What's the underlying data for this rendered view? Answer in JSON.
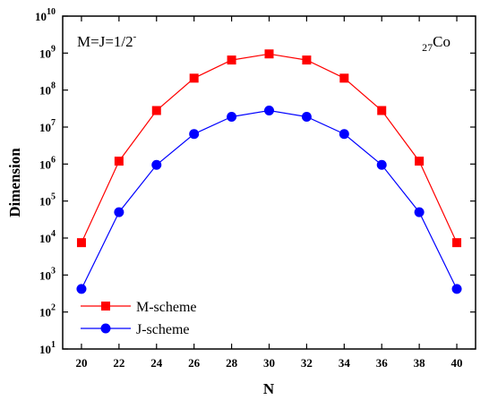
{
  "chart_data": {
    "type": "line",
    "title": "",
    "xlabel": "N",
    "ylabel": "Dimension",
    "x_ticks": [
      20,
      22,
      24,
      26,
      28,
      30,
      32,
      34,
      36,
      38,
      40
    ],
    "xlim": [
      19,
      41
    ],
    "y_scale": "log",
    "y_tick_exponents": [
      1,
      2,
      3,
      4,
      5,
      6,
      7,
      8,
      9,
      10
    ],
    "ylim": [
      10,
      10000000000
    ],
    "grid": false,
    "legend_position": "bottom-left",
    "annotations": {
      "left_text": "M=J=1/2",
      "left_sup": "-",
      "right_sub": "27",
      "right_text": "Co"
    },
    "series": [
      {
        "name": "M-scheme",
        "color": "#ff0000",
        "marker": "square",
        "x": [
          20,
          22,
          24,
          26,
          28,
          30,
          32,
          34,
          36,
          38,
          40
        ],
        "y": [
          7500,
          1200000,
          28000000,
          210000000,
          650000000,
          950000000,
          650000000,
          210000000,
          28000000,
          1200000,
          7500
        ]
      },
      {
        "name": "J-scheme",
        "color": "#0000ff",
        "marker": "circle",
        "x": [
          20,
          22,
          24,
          26,
          28,
          30,
          32,
          34,
          36,
          38,
          40
        ],
        "y": [
          420,
          50000,
          950000,
          6500000,
          19000000,
          28000000,
          19000000,
          6500000,
          950000,
          50000,
          420
        ]
      }
    ]
  }
}
